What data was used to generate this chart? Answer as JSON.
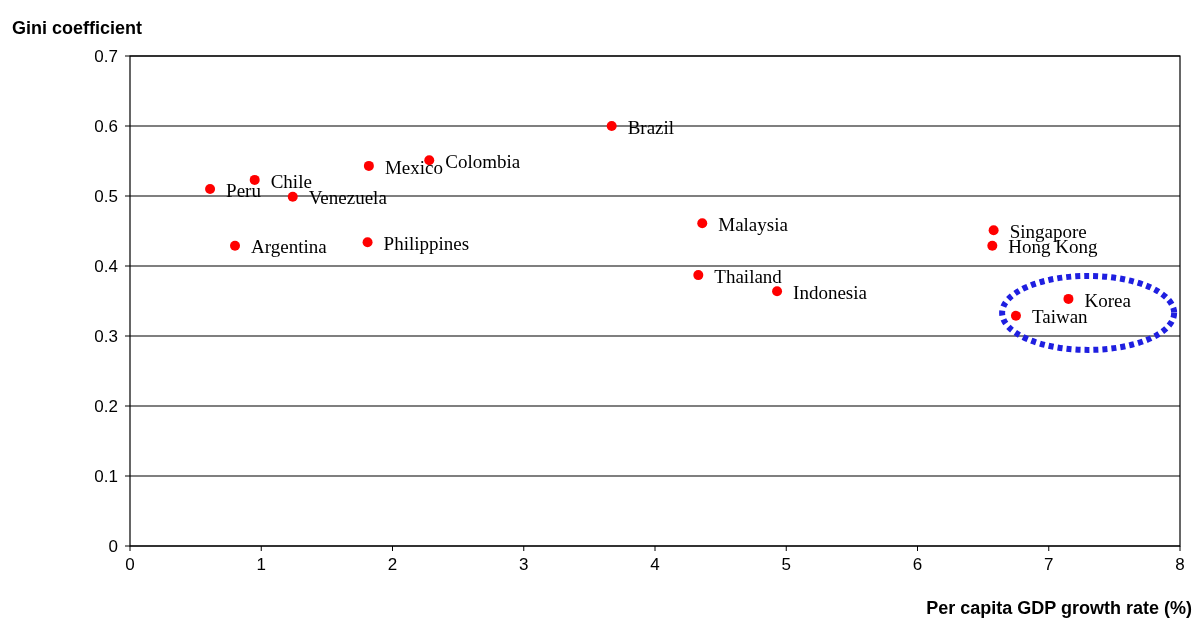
{
  "chart_data": {
    "type": "scatter",
    "xlabel": "Per capita GDP growth rate (%)",
    "ylabel": "Gini coefficient",
    "xlim": [
      0,
      8
    ],
    "xticks": [
      0,
      1,
      2,
      3,
      4,
      5,
      6,
      7,
      8
    ],
    "ylim": [
      0,
      0.7
    ],
    "yticks": [
      0,
      0.1,
      0.2,
      0.3,
      0.4,
      0.5,
      0.6,
      0.7
    ],
    "grid": "y",
    "marker": "circle",
    "series": [
      {
        "color": "#ff0000",
        "x": [
          0.61,
          0.95,
          0.8,
          1.24,
          1.82,
          1.81,
          2.28,
          3.67,
          4.36,
          4.33,
          4.93,
          6.58,
          6.57,
          7.15,
          6.75
        ],
        "values": [
          0.51,
          0.523,
          0.429,
          0.499,
          0.543,
          0.434,
          0.551,
          0.6,
          0.461,
          0.387,
          0.364,
          0.451,
          0.429,
          0.353,
          0.329
        ]
      }
    ],
    "annotations": [
      {
        "text": "Peru",
        "x": 0.61,
        "y": 0.51
      },
      {
        "text": "Chile",
        "x": 0.95,
        "y": 0.523
      },
      {
        "text": "Argentina",
        "x": 0.8,
        "y": 0.429
      },
      {
        "text": "Venezuela",
        "x": 1.24,
        "y": 0.499
      },
      {
        "text": "Mexico",
        "x": 1.82,
        "y": 0.543
      },
      {
        "text": "Philippines",
        "x": 1.81,
        "y": 0.434
      },
      {
        "text": "Colombia",
        "x": 2.28,
        "y": 0.551
      },
      {
        "text": "Brazil",
        "x": 3.67,
        "y": 0.6
      },
      {
        "text": "Malaysia",
        "x": 4.36,
        "y": 0.461
      },
      {
        "text": "Thailand",
        "x": 4.33,
        "y": 0.387
      },
      {
        "text": "Indonesia",
        "x": 4.93,
        "y": 0.364
      },
      {
        "text": "Singapore",
        "x": 6.58,
        "y": 0.451
      },
      {
        "text": "Hong Kong",
        "x": 6.57,
        "y": 0.429
      },
      {
        "text": "Korea",
        "x": 7.15,
        "y": 0.353
      },
      {
        "text": "Taiwan",
        "x": 6.75,
        "y": 0.329
      }
    ]
  }
}
